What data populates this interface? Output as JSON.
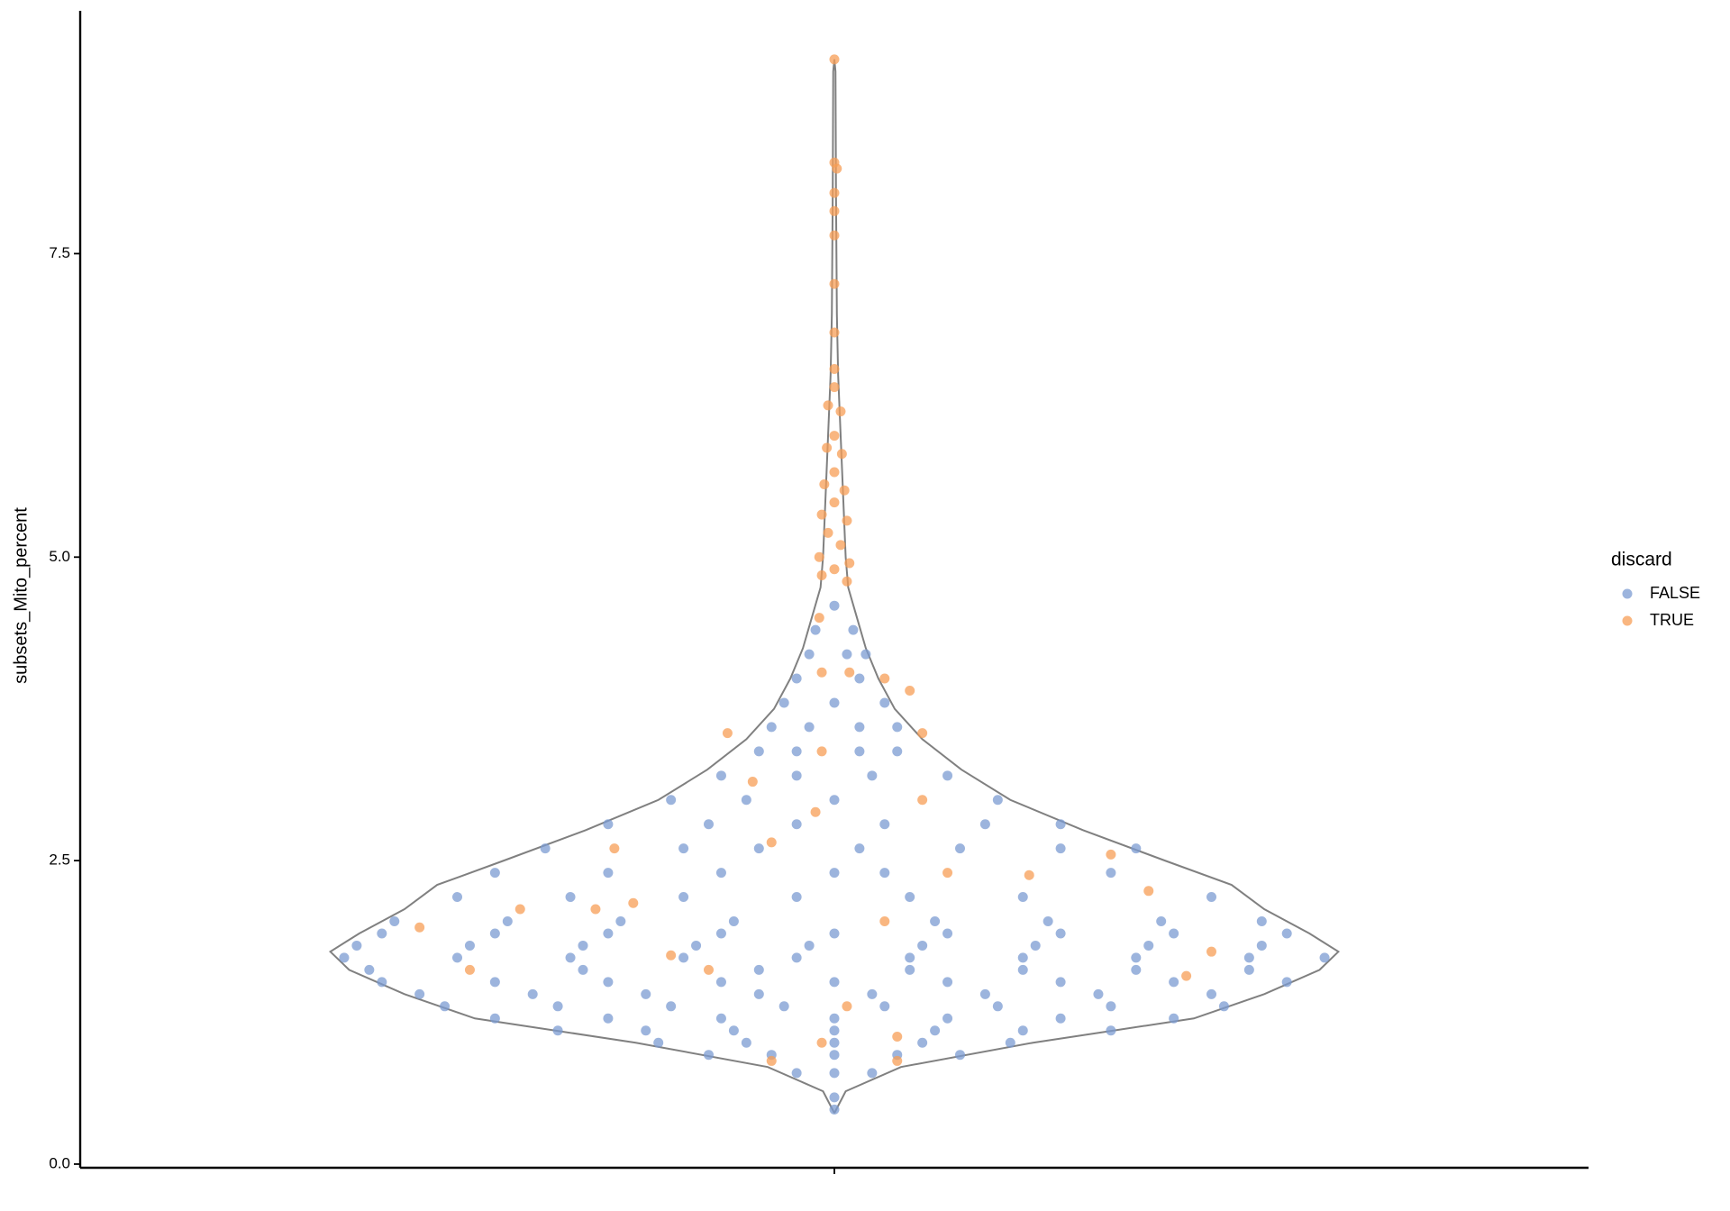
{
  "chart_data": {
    "type": "violin",
    "y_label": "subsets_Mito_percent",
    "legend_title": "discard",
    "legend_position": "right",
    "ylim": [
      -0.03,
      9.5
    ],
    "yticks": [
      {
        "value": 0,
        "label": "0.0"
      },
      {
        "value": 2.5,
        "label": "2.5"
      },
      {
        "value": 5,
        "label": "5.0"
      },
      {
        "value": 7.5,
        "label": "7.5"
      }
    ],
    "xlim": [
      -0.6,
      0.6
    ],
    "xticks": [
      0
    ],
    "violin": {
      "outline_color": "#808080",
      "y": [
        0.42,
        0.6,
        0.8,
        1.0,
        1.2,
        1.4,
        1.6,
        1.75,
        1.9,
        2.1,
        2.3,
        2.5,
        2.75,
        3.0,
        3.25,
        3.5,
        3.75,
        4.0,
        4.25,
        4.5,
        4.75,
        5.0,
        5.5,
        6.0,
        6.5,
        7.0,
        8.0,
        9.0,
        9.1
      ],
      "width": [
        0,
        0.009,
        0.053,
        0.158,
        0.286,
        0.342,
        0.386,
        0.401,
        0.378,
        0.342,
        0.316,
        0.263,
        0.198,
        0.14,
        0.101,
        0.07,
        0.048,
        0.035,
        0.025,
        0.018,
        0.011,
        0.009,
        0.007,
        0.005,
        0.003,
        0.002,
        0.0013,
        0.0009,
        0
      ]
    },
    "series": [
      {
        "name": "FALSE",
        "color": "#7b9bd1",
        "x": [
          0,
          0,
          -0.03,
          0,
          0.03,
          -0.1,
          -0.05,
          0,
          0.05,
          0.1,
          -0.14,
          -0.07,
          0,
          0.07,
          0.14,
          -0.22,
          -0.15,
          -0.08,
          0,
          0.08,
          0.15,
          0.22,
          -0.27,
          -0.18,
          -0.09,
          0,
          0.09,
          0.18,
          0.27,
          -0.31,
          -0.22,
          -0.13,
          -0.04,
          0.04,
          0.13,
          0.22,
          0.31,
          -0.33,
          -0.24,
          -0.15,
          -0.06,
          0.03,
          0.12,
          0.21,
          0.3,
          -0.36,
          -0.27,
          -0.18,
          -0.09,
          0,
          0.09,
          0.18,
          0.27,
          0.36,
          -0.37,
          -0.2,
          -0.06,
          0.06,
          0.15,
          0.24,
          0.33,
          -0.39,
          -0.3,
          -0.21,
          -0.12,
          -0.03,
          0.06,
          0.15,
          0.24,
          0.33,
          0.39,
          -0.38,
          -0.29,
          -0.2,
          -0.11,
          -0.02,
          0.07,
          0.16,
          0.25,
          0.34,
          -0.36,
          -0.27,
          -0.18,
          -0.09,
          0,
          0.09,
          0.18,
          0.27,
          0.36,
          -0.35,
          -0.26,
          -0.17,
          -0.08,
          0.08,
          0.17,
          0.26,
          0.34,
          -0.3,
          -0.21,
          -0.12,
          -0.03,
          0.06,
          0.15,
          0.3,
          -0.27,
          -0.18,
          -0.09,
          0,
          0.04,
          0.22,
          -0.23,
          -0.12,
          -0.06,
          0.02,
          0.1,
          0.18,
          0.24,
          -0.18,
          -0.1,
          -0.03,
          0.04,
          0.12,
          0.18,
          -0.13,
          -0.07,
          0,
          0.13,
          -0.09,
          -0.03,
          0.03,
          0.09,
          -0.06,
          -0.03,
          0.02,
          0.05,
          -0.05,
          -0.02,
          0.02,
          0.05,
          -0.04,
          0,
          0.04,
          -0.03,
          0.02,
          -0.02,
          0.01,
          0.025,
          -0.015,
          0.015,
          0
        ],
        "values": [
          0.45,
          0.55,
          0.75,
          0.75,
          0.75,
          0.9,
          0.9,
          0.9,
          0.9,
          0.9,
          1.0,
          1.0,
          1.0,
          1.0,
          1.0,
          1.1,
          1.1,
          1.1,
          1.1,
          1.1,
          1.1,
          1.1,
          1.2,
          1.2,
          1.2,
          1.2,
          1.2,
          1.2,
          1.2,
          1.3,
          1.3,
          1.3,
          1.3,
          1.3,
          1.3,
          1.3,
          1.3,
          1.4,
          1.4,
          1.4,
          1.4,
          1.4,
          1.4,
          1.4,
          1.4,
          1.5,
          1.5,
          1.5,
          1.5,
          1.5,
          1.5,
          1.5,
          1.5,
          1.5,
          1.6,
          1.6,
          1.6,
          1.6,
          1.6,
          1.6,
          1.6,
          1.7,
          1.7,
          1.7,
          1.7,
          1.7,
          1.7,
          1.7,
          1.7,
          1.7,
          1.7,
          1.8,
          1.8,
          1.8,
          1.8,
          1.8,
          1.8,
          1.8,
          1.8,
          1.8,
          1.9,
          1.9,
          1.9,
          1.9,
          1.9,
          1.9,
          1.9,
          1.9,
          1.9,
          2.0,
          2.0,
          2.0,
          2.0,
          2.0,
          2.0,
          2.0,
          2.0,
          2.2,
          2.2,
          2.2,
          2.2,
          2.2,
          2.2,
          2.2,
          2.4,
          2.4,
          2.4,
          2.4,
          2.4,
          2.4,
          2.6,
          2.6,
          2.6,
          2.6,
          2.6,
          2.6,
          2.6,
          2.8,
          2.8,
          2.8,
          2.8,
          2.8,
          2.8,
          3.0,
          3.0,
          3.0,
          3.0,
          3.2,
          3.2,
          3.2,
          3.2,
          3.4,
          3.4,
          3.4,
          3.4,
          3.6,
          3.6,
          3.6,
          3.6,
          3.8,
          3.8,
          3.8,
          4.0,
          4.0,
          4.2,
          4.2,
          4.2,
          4.4,
          4.4,
          4.6
        ]
      },
      {
        "name": "TRUE",
        "color": "#f79d55",
        "x": [
          0,
          0,
          0.002,
          0,
          0,
          0,
          0,
          0,
          0,
          0,
          -0.005,
          0.005,
          0,
          -0.006,
          0.006,
          0,
          -0.008,
          0.008,
          0,
          -0.01,
          0.01,
          -0.005,
          0.005,
          -0.012,
          0.012,
          0,
          -0.01,
          0.01,
          -0.012,
          -0.01,
          0.012,
          0.04,
          0.06,
          -0.085,
          0.07,
          -0.01,
          -0.065,
          0.07,
          -0.015,
          -0.05,
          0.09,
          0.155,
          0.22,
          0.25,
          -0.175,
          -0.16,
          -0.19,
          -0.25,
          -0.33,
          0.3,
          -0.29,
          -0.1,
          -0.13,
          0.04,
          0.01,
          -0.01,
          0.05,
          -0.05,
          0.05,
          0.28
        ],
        "values": [
          9.1,
          8.25,
          8.2,
          8.0,
          7.85,
          7.65,
          7.25,
          6.85,
          6.55,
          6.4,
          6.25,
          6.2,
          6.0,
          5.9,
          5.85,
          5.7,
          5.6,
          5.55,
          5.45,
          5.35,
          5.3,
          5.2,
          5.1,
          5.0,
          4.95,
          4.9,
          4.85,
          4.8,
          4.5,
          4.05,
          4.05,
          4.0,
          3.9,
          3.55,
          3.55,
          3.4,
          3.15,
          3.0,
          2.9,
          2.65,
          2.4,
          2.38,
          2.55,
          2.25,
          2.6,
          2.15,
          2.1,
          2.1,
          1.95,
          1.75,
          1.6,
          1.6,
          1.72,
          2.0,
          1.3,
          1.0,
          1.05,
          0.85,
          0.85,
          1.55
        ]
      }
    ]
  }
}
